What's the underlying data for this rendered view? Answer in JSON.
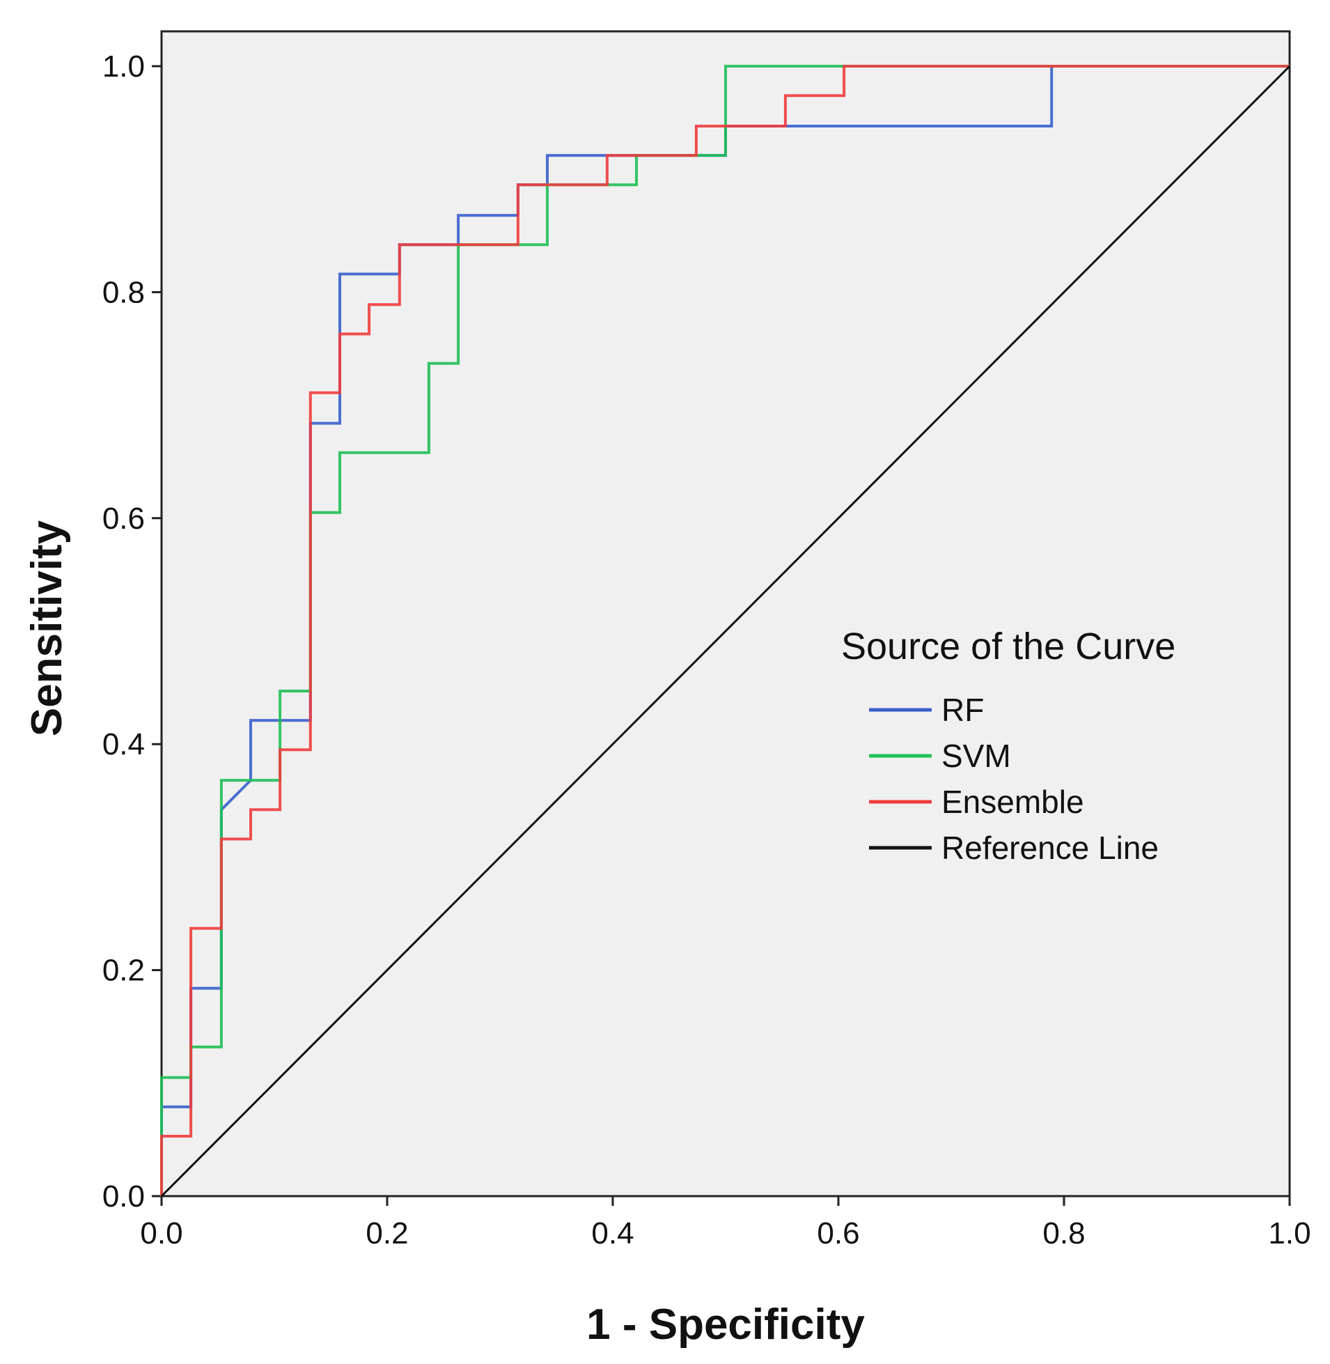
{
  "chart_data": {
    "type": "line",
    "title": "",
    "xlabel": "1 - Specificity",
    "ylabel": "Sensitivity",
    "xlim": [
      0,
      1
    ],
    "ylim": [
      0,
      1
    ],
    "xticks": [
      "0.0",
      "0.2",
      "0.4",
      "0.6",
      "0.8",
      "1.0"
    ],
    "yticks": [
      "0.0",
      "0.2",
      "0.4",
      "0.6",
      "0.8",
      "1.0"
    ],
    "grid": false,
    "legend": {
      "title": "Source of the Curve",
      "position": "right-middle"
    },
    "series": [
      {
        "name": "RF",
        "color": "#3a5fcd",
        "x": [
          0,
          0,
          0.026,
          0.026,
          0.053,
          0.053,
          0.079,
          0.079,
          0.132,
          0.132,
          0.158,
          0.158,
          0.211,
          0.211,
          0.263,
          0.263,
          0.316,
          0.316,
          0.342,
          0.342,
          0.5,
          0.5,
          0.789,
          0.789,
          1.0
        ],
        "y": [
          0,
          0.079,
          0.079,
          0.184,
          0.184,
          0.342,
          0.368,
          0.421,
          0.421,
          0.684,
          0.684,
          0.816,
          0.816,
          0.842,
          0.842,
          0.868,
          0.868,
          0.895,
          0.895,
          0.921,
          0.921,
          0.947,
          0.947,
          1.0,
          1.0
        ]
      },
      {
        "name": "SVM",
        "color": "#1fbf55",
        "x": [
          0,
          0,
          0.026,
          0.026,
          0.053,
          0.053,
          0.105,
          0.105,
          0.132,
          0.132,
          0.158,
          0.158,
          0.237,
          0.237,
          0.263,
          0.263,
          0.342,
          0.342,
          0.395,
          0.395,
          0.421,
          0.421,
          0.474,
          0.474,
          0.5,
          0.5,
          1.0
        ],
        "y": [
          0,
          0.105,
          0.105,
          0.132,
          0.132,
          0.368,
          0.368,
          0.447,
          0.447,
          0.605,
          0.605,
          0.658,
          0.658,
          0.737,
          0.737,
          0.842,
          0.842,
          0.895,
          0.895,
          0.895,
          0.895,
          0.921,
          0.921,
          0.921,
          0.921,
          1.0,
          1.0
        ]
      },
      {
        "name": "Ensemble",
        "color": "#f03c3c",
        "x": [
          0,
          0,
          0.026,
          0.026,
          0.053,
          0.053,
          0.079,
          0.079,
          0.105,
          0.105,
          0.132,
          0.132,
          0.158,
          0.158,
          0.184,
          0.184,
          0.211,
          0.211,
          0.316,
          0.316,
          0.395,
          0.395,
          0.474,
          0.474,
          0.553,
          0.553,
          0.605,
          0.605,
          1.0
        ],
        "y": [
          0,
          0.053,
          0.053,
          0.237,
          0.237,
          0.316,
          0.316,
          0.342,
          0.342,
          0.395,
          0.395,
          0.711,
          0.711,
          0.763,
          0.763,
          0.789,
          0.789,
          0.842,
          0.842,
          0.895,
          0.895,
          0.921,
          0.921,
          0.947,
          0.947,
          0.974,
          0.974,
          1.0,
          1.0
        ]
      },
      {
        "name": "Reference Line",
        "color": "#111111",
        "x": [
          0,
          1
        ],
        "y": [
          0,
          1
        ]
      }
    ]
  }
}
